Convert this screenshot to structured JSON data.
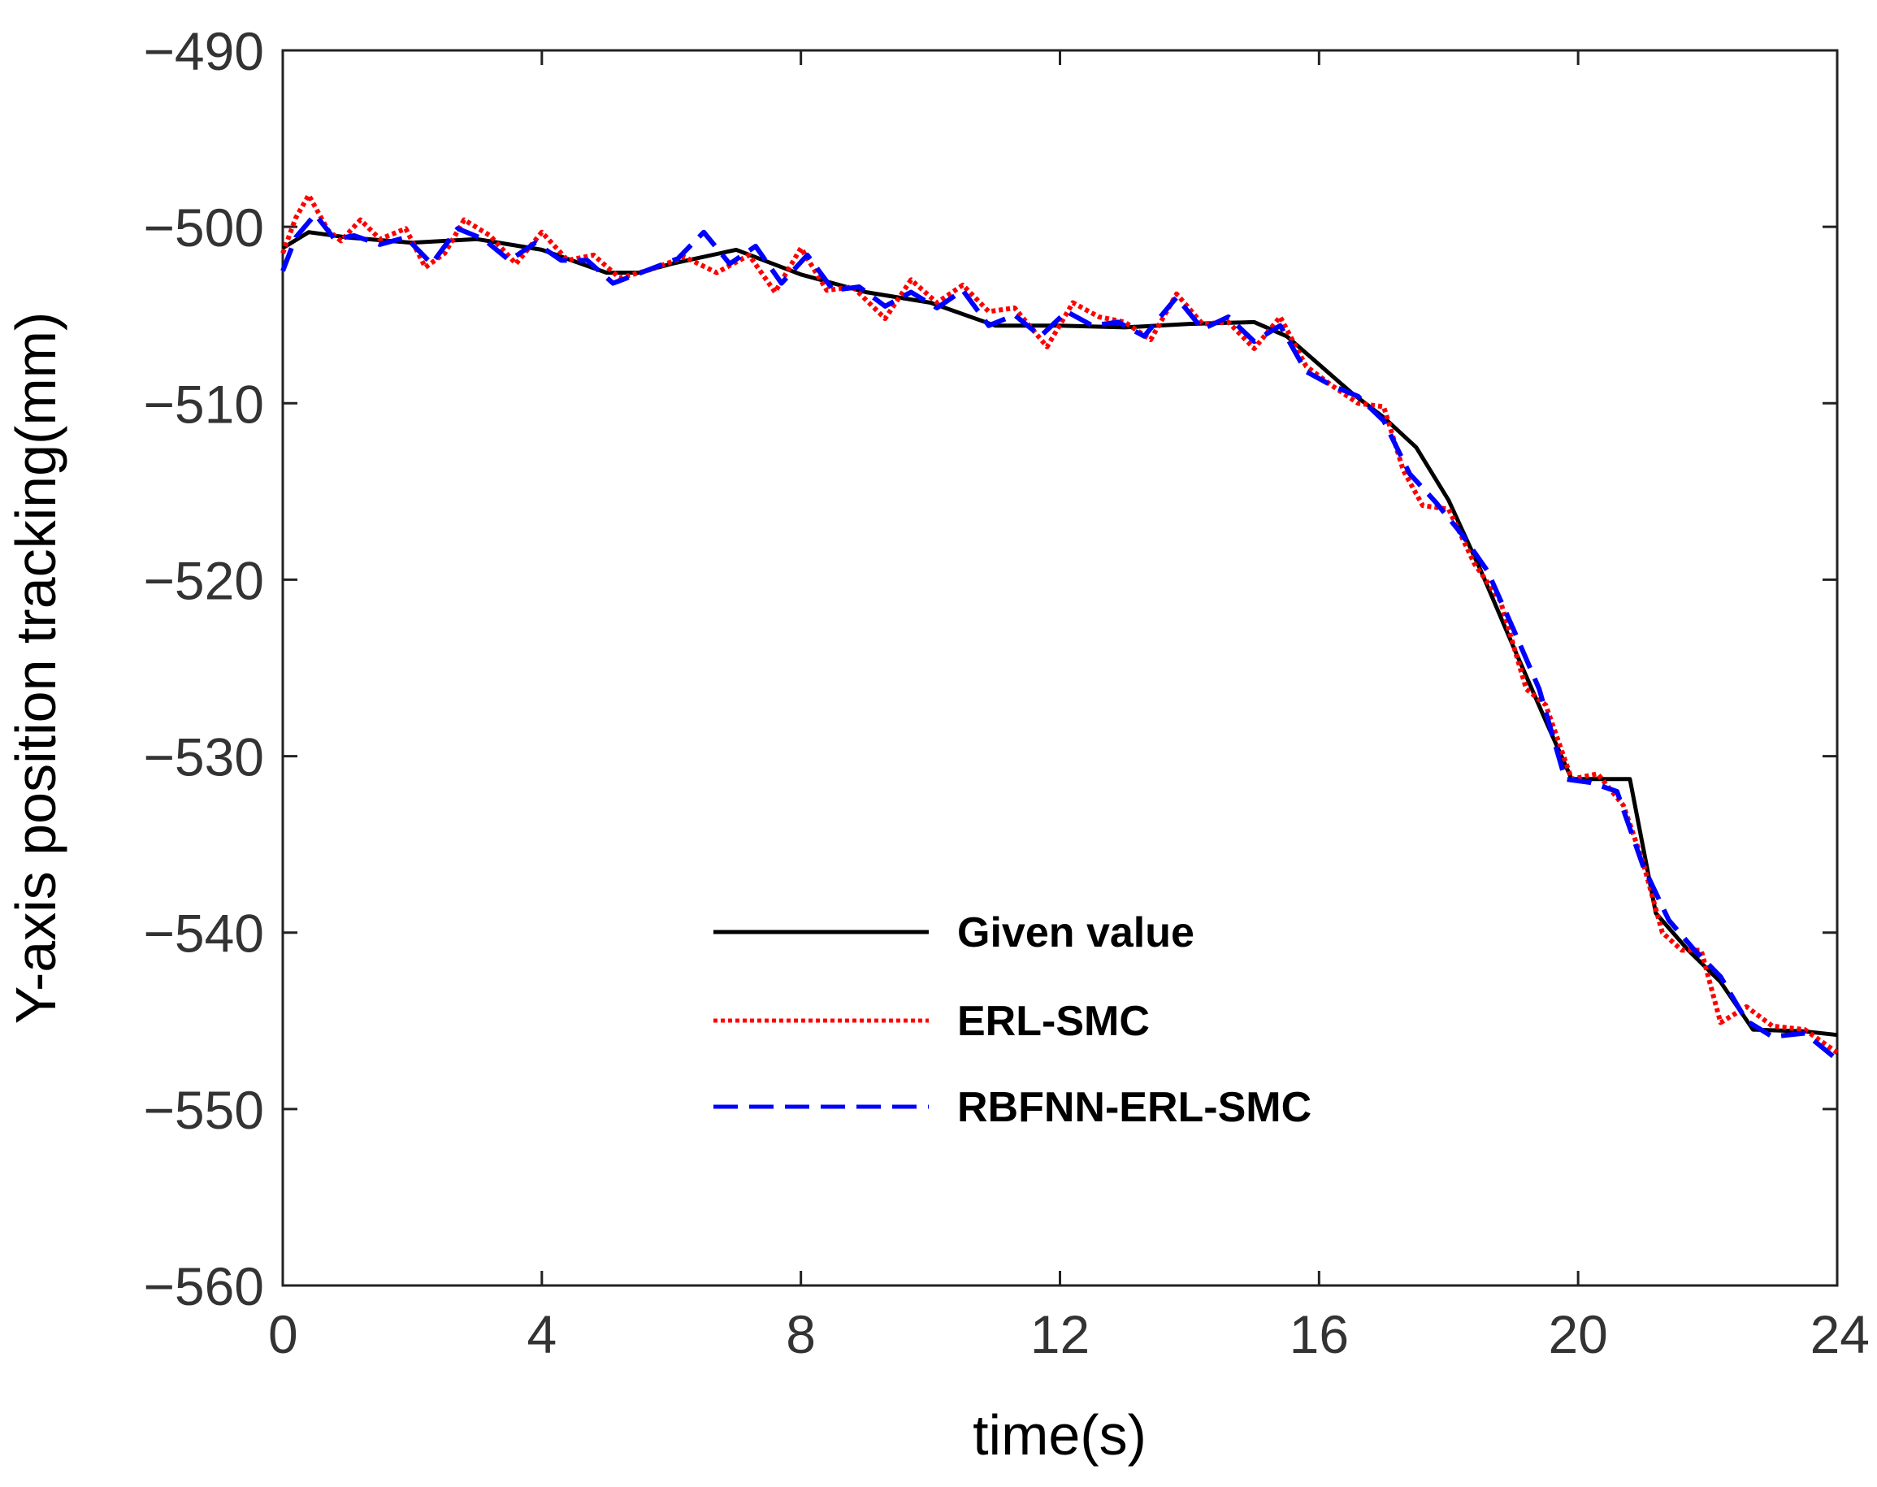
{
  "chart_data": {
    "type": "line",
    "title": "",
    "xlabel": "time(s)",
    "ylabel": "Y-axis position tracking(mm)",
    "xlim": [
      0,
      24
    ],
    "ylim": [
      -560,
      -490
    ],
    "xticks": [
      0,
      4,
      8,
      12,
      16,
      20,
      24
    ],
    "xtick_labels": [
      "0",
      "4",
      "8",
      "12",
      "16",
      "20",
      "24"
    ],
    "yticks": [
      -490,
      -500,
      -510,
      -520,
      -530,
      -540,
      -550,
      -560
    ],
    "ytick_labels": [
      "−490",
      "−500",
      "−510",
      "−520",
      "−530",
      "−540",
      "−550",
      "−560"
    ],
    "grid": false,
    "legend_position": "lower-center",
    "series": [
      {
        "name": "Given value",
        "color": "#000000",
        "style": "solid",
        "x": [
          0,
          0.4,
          1,
          2,
          3,
          4,
          5,
          5.5,
          6,
          7,
          8,
          9,
          10,
          11,
          12,
          13,
          14,
          15,
          15.5,
          16,
          16.5,
          17,
          17.5,
          18,
          18.5,
          19,
          19.5,
          19.9,
          20.8,
          21.2,
          21.7,
          22.2,
          22.7,
          23.5,
          24
        ],
        "y": [
          -501.2,
          -500.3,
          -500.6,
          -500.9,
          -500.7,
          -501.3,
          -502.6,
          -502.6,
          -502.1,
          -501.3,
          -502.7,
          -503.7,
          -504.3,
          -505.6,
          -505.6,
          -505.7,
          -505.5,
          -505.4,
          -506.2,
          -507.8,
          -509.4,
          -510.8,
          -512.5,
          -515.5,
          -519.5,
          -523.8,
          -528.0,
          -531.3,
          -531.3,
          -538.9,
          -541.0,
          -542.8,
          -545.5,
          -545.6,
          -545.8
        ]
      },
      {
        "name": "ERL-SMC",
        "color": "#ff0000",
        "style": "dotted",
        "x": [
          0,
          0.2,
          0.4,
          0.7,
          0.9,
          1.2,
          1.5,
          1.9,
          2.2,
          2.5,
          2.8,
          3.2,
          3.6,
          4.0,
          4.4,
          4.8,
          5.2,
          5.7,
          6.2,
          6.7,
          7.2,
          7.6,
          8.0,
          8.4,
          8.8,
          9.3,
          9.7,
          10.1,
          10.5,
          10.9,
          11.3,
          11.8,
          12.2,
          12.6,
          13.0,
          13.4,
          13.8,
          14.2,
          14.6,
          15.0,
          15.4,
          15.8,
          16.2,
          16.6,
          17.0,
          17.3,
          17.6,
          18.0,
          18.4,
          18.8,
          19.2,
          19.5,
          19.9,
          20.3,
          20.7,
          21.0,
          21.3,
          21.6,
          21.9,
          22.2,
          22.6,
          23.0,
          23.5,
          24.0
        ],
        "y": [
          -501.5,
          -499.5,
          -498.2,
          -500.2,
          -500.8,
          -499.6,
          -500.7,
          -500.1,
          -502.3,
          -501.5,
          -499.6,
          -500.5,
          -502.1,
          -500.3,
          -501.9,
          -501.6,
          -502.9,
          -502.4,
          -501.7,
          -502.6,
          -501.6,
          -503.7,
          -501.2,
          -503.6,
          -503.4,
          -505.2,
          -503.0,
          -504.3,
          -503.3,
          -504.8,
          -504.6,
          -506.8,
          -504.3,
          -505.1,
          -505.4,
          -506.4,
          -503.8,
          -505.5,
          -505.4,
          -506.9,
          -505.1,
          -507.9,
          -509.0,
          -510.0,
          -510.2,
          -513.8,
          -515.8,
          -516.0,
          -519.1,
          -521.2,
          -526.2,
          -527.1,
          -531.3,
          -531.0,
          -532.8,
          -536.0,
          -540.0,
          -541.0,
          -541.0,
          -545.1,
          -544.2,
          -545.3,
          -545.5,
          -546.8
        ]
      },
      {
        "name": "RBFNN-ERL-SMC",
        "color": "#0000ff",
        "style": "dashed",
        "x": [
          0,
          0.2,
          0.5,
          0.8,
          1.1,
          1.5,
          1.9,
          2.3,
          2.7,
          3.1,
          3.5,
          3.9,
          4.3,
          4.7,
          5.1,
          5.6,
          6.1,
          6.5,
          6.9,
          7.3,
          7.7,
          8.1,
          8.5,
          8.9,
          9.3,
          9.7,
          10.1,
          10.5,
          10.9,
          11.3,
          11.7,
          12.1,
          12.5,
          12.9,
          13.3,
          13.8,
          14.2,
          14.6,
          15.0,
          15.4,
          15.8,
          16.2,
          16.6,
          17.0,
          17.4,
          17.8,
          18.2,
          18.6,
          19.0,
          19.4,
          19.8,
          20.2,
          20.6,
          21.0,
          21.4,
          21.8,
          22.2,
          22.6,
          23.0,
          23.5,
          24.0
        ],
        "y": [
          -502.5,
          -500.6,
          -499.3,
          -500.7,
          -500.5,
          -501.0,
          -500.6,
          -502.1,
          -500.1,
          -500.7,
          -501.9,
          -500.9,
          -501.9,
          -501.9,
          -503.2,
          -502.5,
          -501.8,
          -500.3,
          -502.1,
          -501.1,
          -503.2,
          -501.6,
          -503.6,
          -503.4,
          -504.5,
          -503.7,
          -504.6,
          -503.6,
          -505.6,
          -505.0,
          -506.2,
          -504.8,
          -505.6,
          -505.4,
          -506.2,
          -504.0,
          -505.8,
          -505.1,
          -506.5,
          -505.6,
          -508.2,
          -509.0,
          -509.6,
          -511.0,
          -514.0,
          -515.6,
          -517.4,
          -519.5,
          -522.8,
          -526.2,
          -531.3,
          -531.5,
          -532.0,
          -536.2,
          -539.3,
          -541.0,
          -542.5,
          -545.0,
          -545.9,
          -545.7,
          -547.2
        ]
      }
    ]
  }
}
